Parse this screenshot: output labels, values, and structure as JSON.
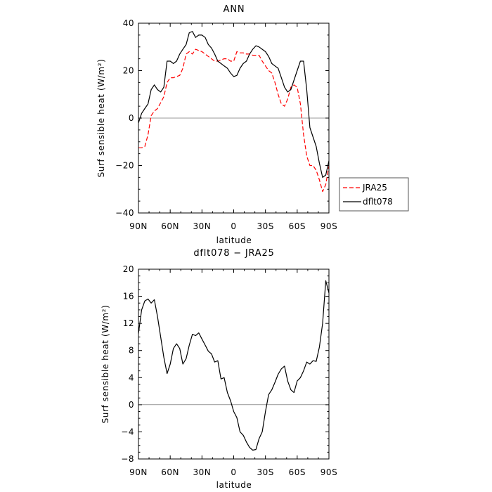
{
  "chart_data": [
    {
      "type": "line",
      "title": "ANN",
      "xlabel": "latitude",
      "ylabel": "Surf sensible heat (W/m²)",
      "xlim": [
        90,
        -90
      ],
      "ylim": [
        -40,
        40
      ],
      "x_ticks": [
        90,
        60,
        30,
        0,
        -30,
        -60,
        -90
      ],
      "x_tick_labels": [
        "90N",
        "60N",
        "30N",
        "0",
        "30S",
        "60S",
        "90S"
      ],
      "y_ticks": [
        -40,
        -20,
        0,
        20,
        40
      ],
      "y_tick_labels": [
        "−40",
        "−20",
        "0",
        "20",
        "40"
      ],
      "legend": {
        "position": "right-outside"
      },
      "series": [
        {
          "name": "JRA25",
          "color": "#ff0000",
          "dash": "dashed",
          "x": [
            90,
            87,
            84,
            81,
            78,
            75,
            72,
            69,
            66,
            63,
            60,
            57,
            54,
            51,
            48,
            45,
            42,
            39,
            36,
            33,
            30,
            27,
            24,
            21,
            18,
            15,
            12,
            9,
            6,
            3,
            0,
            -3,
            -6,
            -9,
            -12,
            -15,
            -18,
            -21,
            -24,
            -27,
            -30,
            -33,
            -36,
            -39,
            -42,
            -45,
            -48,
            -51,
            -54,
            -57,
            -60,
            -63,
            -66,
            -69,
            -72,
            -75,
            -78,
            -81,
            -84,
            -87,
            -90
          ],
          "y": [
            -12.5,
            -12.5,
            -12,
            -7,
            1,
            3,
            4,
            6.5,
            9,
            15,
            17,
            17,
            17.5,
            18,
            21,
            27,
            28,
            27,
            29,
            28.5,
            28,
            27,
            26,
            25,
            24,
            24,
            24.5,
            25,
            25,
            24,
            24,
            28,
            27.5,
            27.5,
            27,
            27,
            26.5,
            26.5,
            26.5,
            24,
            22,
            20,
            19,
            15,
            10,
            6,
            5,
            8,
            13,
            14,
            13,
            6,
            -7,
            -16,
            -20,
            -20,
            -22,
            -26,
            -31,
            -28,
            -20
          ]
        },
        {
          "name": "dflt078",
          "color": "#000000",
          "dash": "solid",
          "x": [
            90,
            87,
            84,
            81,
            78,
            75,
            72,
            69,
            66,
            63,
            60,
            57,
            54,
            51,
            48,
            45,
            42,
            39,
            36,
            33,
            30,
            27,
            24,
            21,
            18,
            15,
            12,
            9,
            6,
            3,
            0,
            -3,
            -6,
            -9,
            -12,
            -15,
            -18,
            -21,
            -24,
            -27,
            -30,
            -33,
            -36,
            -39,
            -42,
            -45,
            -48,
            -51,
            -54,
            -57,
            -60,
            -63,
            -66,
            -69,
            -72,
            -75,
            -78,
            -81,
            -84,
            -87,
            -90
          ],
          "y": [
            -2,
            2,
            4,
            6,
            12,
            14,
            12,
            11,
            13,
            24,
            24,
            23,
            24,
            27,
            29,
            31,
            36,
            36.5,
            34,
            35,
            35,
            34,
            31,
            29.5,
            27,
            24,
            23,
            22,
            21,
            19,
            17.5,
            18,
            21,
            23,
            24,
            27,
            29,
            30.5,
            30,
            29,
            28,
            26,
            23,
            22,
            21,
            17,
            13,
            11,
            12,
            16,
            20,
            24,
            24,
            12,
            -4,
            -8,
            -12,
            -19,
            -25,
            -24,
            -18
          ]
        }
      ]
    },
    {
      "type": "line",
      "title": "dflt078 − JRA25",
      "xlabel": "latitude",
      "ylabel": "Surf sensible heat (W/m²)",
      "xlim": [
        90,
        -90
      ],
      "ylim": [
        -8,
        20
      ],
      "x_ticks": [
        90,
        60,
        30,
        0,
        -30,
        -60,
        -90
      ],
      "x_tick_labels": [
        "90N",
        "60N",
        "30N",
        "0",
        "30S",
        "60S",
        "90S"
      ],
      "y_ticks": [
        -8,
        -4,
        0,
        4,
        8,
        12,
        16,
        20
      ],
      "y_tick_labels": [
        "−8",
        "−4",
        "0",
        "4",
        "8",
        "12",
        "16",
        "20"
      ],
      "series": [
        {
          "color": "#000000",
          "dash": "solid",
          "x": [
            90,
            87,
            84,
            81,
            78,
            75,
            72,
            69,
            66,
            63,
            60,
            57,
            54,
            51,
            48,
            45,
            42,
            39,
            36,
            33,
            30,
            27,
            24,
            21,
            18,
            15,
            12,
            9,
            6,
            3,
            0,
            -3,
            -6,
            -9,
            -12,
            -15,
            -18,
            -21,
            -24,
            -27,
            -30,
            -33,
            -36,
            -39,
            -42,
            -45,
            -48,
            -51,
            -54,
            -57,
            -60,
            -63,
            -66,
            -69,
            -72,
            -75,
            -78,
            -81,
            -84,
            -87,
            -90
          ],
          "y": [
            10.5,
            14,
            15.3,
            15.6,
            15,
            15.5,
            13,
            10,
            7,
            4.6,
            6,
            8.3,
            9,
            8.3,
            6,
            6.8,
            8.8,
            10.4,
            10.2,
            10.6,
            9.7,
            8.8,
            7.9,
            7.5,
            6.3,
            6.5,
            3.8,
            4,
            1.8,
            0.6,
            -1,
            -1.9,
            -4,
            -4.5,
            -5.5,
            -6.3,
            -6.7,
            -6.6,
            -5,
            -4,
            -1,
            1.5,
            2.2,
            3.3,
            4.5,
            5.3,
            5.7,
            3.5,
            2.2,
            1.8,
            3.5,
            4,
            5,
            6.3,
            6,
            6.5,
            6.4,
            8.5,
            12,
            18.3,
            16.5
          ]
        }
      ]
    }
  ]
}
